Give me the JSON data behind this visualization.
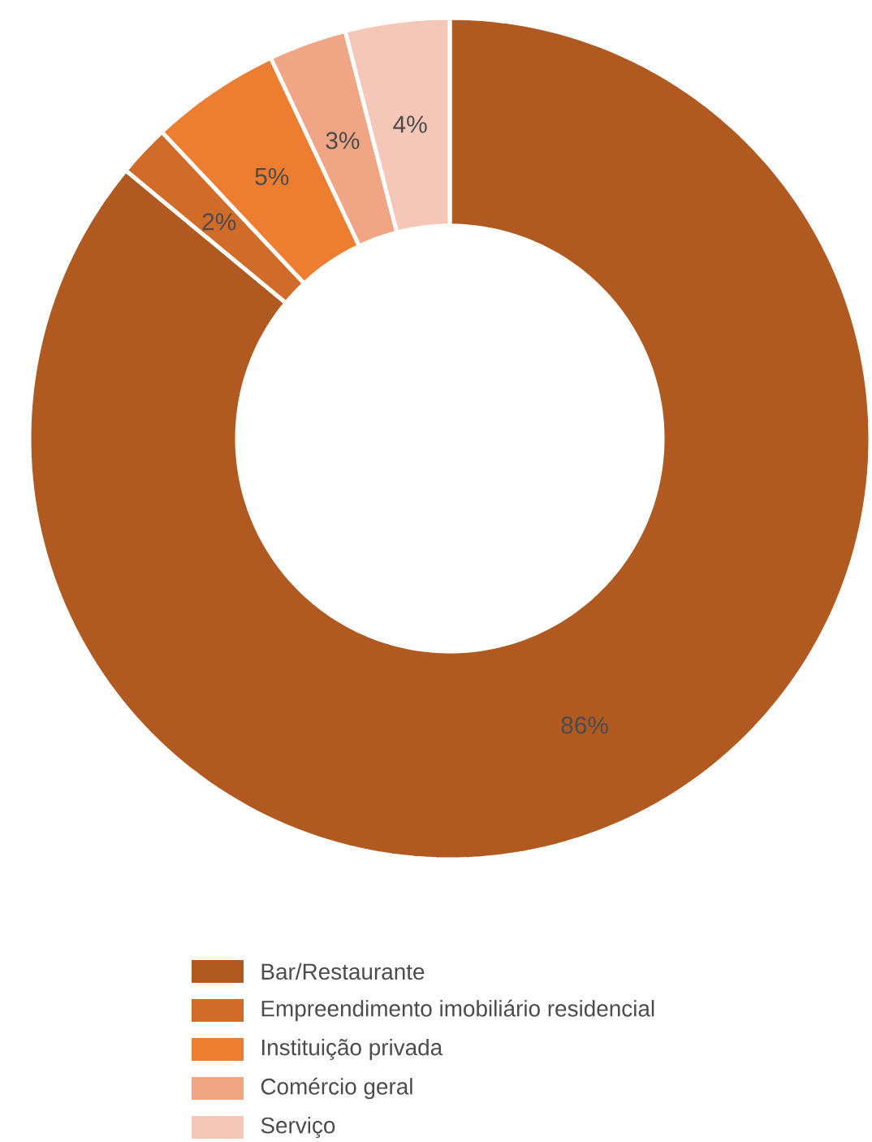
{
  "chart_data": {
    "type": "donut",
    "categories": [
      "Bar/Restaurante",
      "Empreendimento imobiliário residencial",
      "Instituição privada",
      "Comércio geral",
      "Serviço"
    ],
    "values": [
      86,
      2,
      5,
      3,
      4
    ],
    "value_labels": [
      "86%",
      "2%",
      "5%",
      "3%",
      "4%"
    ],
    "colors": [
      "#b05a22",
      "#d06b2a",
      "#ed7d31",
      "#f0a584",
      "#f4c7b8"
    ],
    "legend": "bottom"
  }
}
